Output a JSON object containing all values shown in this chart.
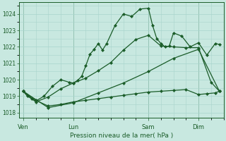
{
  "background_color": "#c8e8e0",
  "grid_color": "#a8d4cc",
  "line_color": "#1a5c28",
  "xlabel": "Pression niveau de la mer( hPa )",
  "ylim": [
    1017.7,
    1024.7
  ],
  "yticks": [
    1018,
    1019,
    1020,
    1021,
    1022,
    1023,
    1024
  ],
  "xtick_labels": [
    "Ven",
    "Lun",
    "Sam",
    "Dim"
  ],
  "xtick_positions": [
    0,
    12,
    30,
    42
  ],
  "vline_positions": [
    0,
    12,
    30,
    42
  ],
  "xlim": [
    -1,
    48
  ],
  "line1_x": [
    0,
    1,
    2,
    3,
    5,
    7,
    9,
    11,
    12,
    13,
    14,
    15,
    16,
    17,
    18,
    19,
    20,
    22,
    24,
    26,
    28,
    30,
    31,
    32,
    33,
    34,
    35,
    36,
    38,
    40,
    42,
    44,
    46,
    47
  ],
  "line1_y": [
    1019.3,
    1019.0,
    1018.85,
    1018.7,
    1019.0,
    1019.6,
    1020.0,
    1019.85,
    1019.8,
    1019.95,
    1020.2,
    1020.85,
    1021.55,
    1021.85,
    1022.2,
    1021.8,
    1022.2,
    1023.3,
    1024.0,
    1023.85,
    1024.3,
    1024.35,
    1023.3,
    1022.5,
    1022.2,
    1022.0,
    1022.05,
    1022.85,
    1022.65,
    1022.0,
    1022.25,
    1021.5,
    1022.2,
    1022.15
  ],
  "line2_x": [
    0,
    3,
    6,
    9,
    12,
    15,
    18,
    21,
    24,
    27,
    30,
    33,
    36,
    39,
    42,
    45,
    47
  ],
  "line2_y": [
    1019.3,
    1018.65,
    1018.95,
    1019.45,
    1019.8,
    1020.1,
    1020.55,
    1021.05,
    1021.8,
    1022.45,
    1022.7,
    1022.05,
    1022.0,
    1021.95,
    1021.95,
    1019.85,
    1019.3
  ],
  "line3_x": [
    0,
    6,
    12,
    18,
    24,
    30,
    36,
    42,
    47
  ],
  "line3_y": [
    1019.3,
    1018.3,
    1018.6,
    1019.2,
    1019.8,
    1020.5,
    1021.3,
    1021.85,
    1019.3
  ],
  "line4_x": [
    0,
    3,
    6,
    9,
    12,
    15,
    18,
    21,
    24,
    27,
    30,
    33,
    36,
    39,
    42,
    44,
    46,
    47
  ],
  "line4_y": [
    1019.3,
    1018.75,
    1018.4,
    1018.5,
    1018.65,
    1018.75,
    1018.85,
    1018.95,
    1019.05,
    1019.15,
    1019.25,
    1019.3,
    1019.35,
    1019.4,
    1019.1,
    1019.15,
    1019.2,
    1019.3
  ],
  "marker_size": 2.2,
  "line_width": 0.9
}
